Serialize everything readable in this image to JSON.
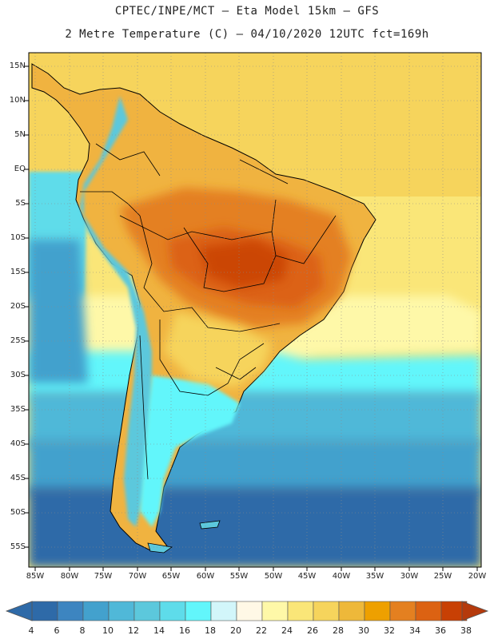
{
  "header": {
    "line1": "CPTEC/INPE/MCT –  Eta Model 15km – GFS",
    "line2": "2 Metre Temperature (C) – 04/10/2020 12UTC fct=169h"
  },
  "map": {
    "lat_labels": [
      "15N",
      "10N",
      "5N",
      "EQ",
      "5S",
      "10S",
      "15S",
      "20S",
      "25S",
      "30S",
      "35S",
      "40S",
      "45S",
      "50S",
      "55S"
    ],
    "lon_labels": [
      "85W",
      "80W",
      "75W",
      "70W",
      "65W",
      "60W",
      "55W",
      "50W",
      "45W",
      "40W",
      "35W",
      "30W",
      "25W",
      "20W"
    ],
    "grid": "dotted",
    "colors": {
      "land_hot": "#d96a10",
      "ocean_cold": "#2f6fb4",
      "border": "#000000"
    }
  },
  "colorbar": {
    "labels": [
      "4",
      "6",
      "8",
      "10",
      "12",
      "14",
      "16",
      "18",
      "20",
      "22",
      "24",
      "26",
      "28",
      "30",
      "32",
      "34",
      "36",
      "38"
    ],
    "colors": [
      "#2e6aa8",
      "#3d85c0",
      "#43a1cd",
      "#50b8d8",
      "#5cc8dc",
      "#5edcea",
      "#62f6fb",
      "#d2f6fa",
      "#fff8e6",
      "#fef8a8",
      "#fae678",
      "#f6d45c",
      "#eeb83a",
      "#eea000",
      "#e48020",
      "#dc6212",
      "#c84004"
    ],
    "left_arrow_color": "#2e6aa8",
    "right_arrow_color": "#b53a0c"
  }
}
